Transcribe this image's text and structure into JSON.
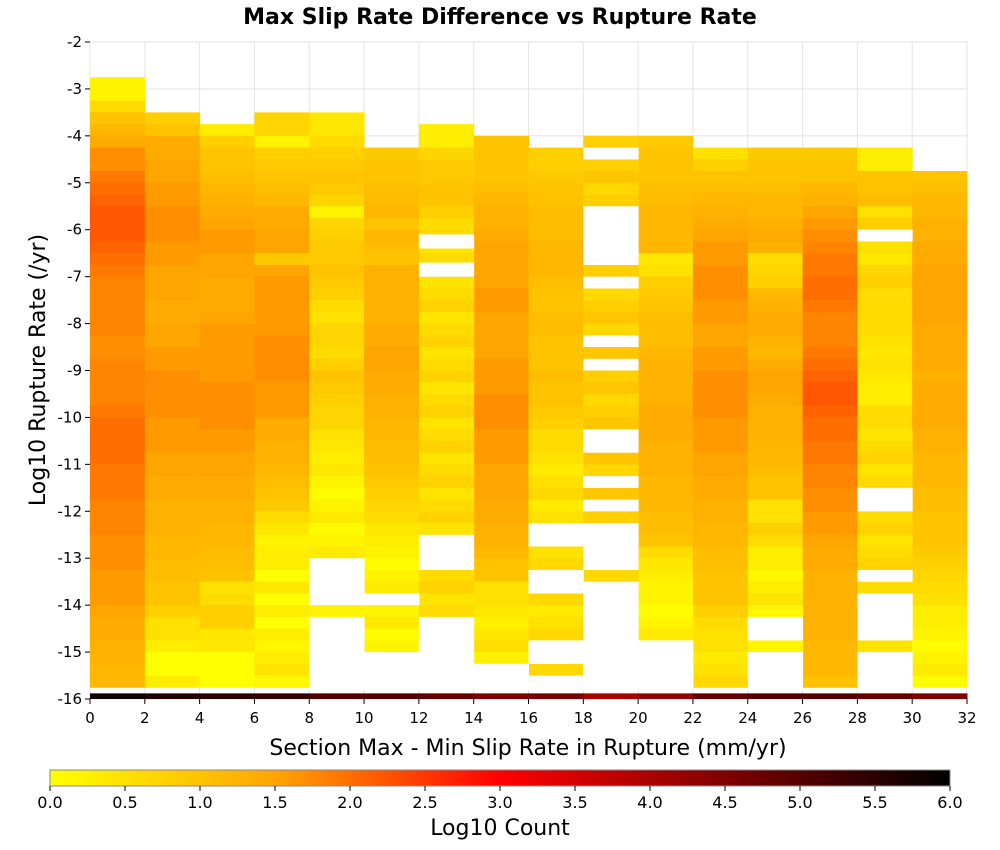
{
  "chart_data": {
    "type": "heatmap",
    "title": "Max Slip Rate Difference vs Rupture Rate",
    "xlabel": "Section Max - Min Slip Rate in Rupture (mm/yr)",
    "ylabel": "Log10 Rupture Rate (/yr)",
    "xlim": [
      0,
      32
    ],
    "ylim": [
      -16,
      -2
    ],
    "x_bin_width": 2,
    "y_bin_width": 0.25,
    "x_ticks": [
      "0",
      "2",
      "4",
      "6",
      "8",
      "10",
      "12",
      "14",
      "16",
      "18",
      "20",
      "22",
      "24",
      "26",
      "28",
      "30",
      "32"
    ],
    "y_ticks": [
      "-2",
      "-3",
      "-4",
      "-5",
      "-6",
      "-7",
      "-8",
      "-9",
      "-10",
      "-11",
      "-12",
      "-13",
      "-14",
      "-15",
      "-16"
    ],
    "grid": true,
    "colorbar": {
      "label": "Log10 Count",
      "range": [
        0,
        6
      ],
      "ticks": [
        "0.0",
        "0.5",
        "1.0",
        "1.5",
        "2.0",
        "2.5",
        "3.0",
        "3.5",
        "4.0",
        "4.5",
        "5.0",
        "5.5",
        "6.0"
      ],
      "colors": [
        "#ffff00",
        "#ffa500",
        "#ff0000",
        "#000000"
      ],
      "placement": "bottom"
    },
    "columns": [
      {
        "x": 1,
        "y_top": -2.75,
        "values": [
          0.2,
          0.2,
          0.6,
          1.0,
          1.2,
          1.4,
          1.7,
          1.7,
          1.9,
          2.0,
          2.1,
          2.2,
          2.2,
          2.2,
          2.1,
          2.0,
          1.9,
          1.8,
          1.8,
          1.8,
          1.8,
          1.8,
          1.7,
          1.7,
          1.8,
          1.8,
          1.8,
          1.8,
          1.9,
          2.0,
          2.0,
          2.0,
          2.0,
          1.9,
          1.9,
          1.9,
          1.8,
          1.8,
          1.8,
          1.7,
          1.7,
          1.7,
          1.6,
          1.6,
          1.6,
          1.5,
          1.4,
          1.4,
          1.3,
          1.3,
          1.2,
          1.2
        ]
      },
      {
        "x": 3,
        "y_top": -3.5,
        "values": [
          0.8,
          1.0,
          1.4,
          1.4,
          1.5,
          1.5,
          1.6,
          1.6,
          1.7,
          1.7,
          1.7,
          1.6,
          1.6,
          1.5,
          1.5,
          1.5,
          1.4,
          1.4,
          1.5,
          1.5,
          1.6,
          1.6,
          1.7,
          1.7,
          1.7,
          1.7,
          1.6,
          1.6,
          1.6,
          1.5,
          1.5,
          1.4,
          1.4,
          1.3,
          1.3,
          1.3,
          1.2,
          1.2,
          1.1,
          1.1,
          1.0,
          1.0,
          0.8,
          0.5,
          0.5,
          0.3,
          0.0,
          0.0,
          0.3
        ]
      },
      {
        "x": 5,
        "y_top": -3.75,
        "values": [
          0.3,
          0.8,
          1.0,
          1.0,
          1.1,
          1.2,
          1.3,
          1.4,
          1.5,
          1.6,
          1.6,
          1.5,
          1.5,
          1.4,
          1.4,
          1.4,
          1.5,
          1.6,
          1.6,
          1.6,
          1.6,
          1.6,
          1.7,
          1.7,
          1.7,
          1.7,
          1.6,
          1.6,
          1.5,
          1.5,
          1.4,
          1.4,
          1.3,
          1.3,
          1.2,
          1.2,
          1.1,
          1.1,
          1.0,
          0.5,
          0.6,
          0.8,
          0.8,
          0.4,
          0.4,
          0.0,
          0.0,
          0.0
        ]
      },
      {
        "x": 7,
        "y_top": -3.5,
        "values": [
          0.7,
          0.7,
          0.2,
          0.8,
          0.9,
          1.0,
          1.1,
          1.2,
          1.4,
          1.4,
          1.5,
          1.5,
          0.9,
          1.5,
          1.6,
          1.6,
          1.6,
          1.6,
          1.6,
          1.7,
          1.7,
          1.7,
          1.7,
          1.6,
          1.6,
          1.6,
          1.4,
          1.4,
          1.3,
          1.3,
          1.2,
          1.1,
          1.0,
          0.9,
          0.6,
          0.4,
          0.2,
          0.3,
          0.3,
          0.0,
          0.4,
          0.0,
          0.3,
          0.0,
          0.3
        ]
      },
      {
        "x": 9,
        "y_top": -3.5,
        "values": [
          0.4,
          0.4,
          0.6,
          0.8,
          0.9,
          1.0,
          0.9,
          0.7,
          0.2,
          0.7,
          0.8,
          0.9,
          0.9,
          1.0,
          0.9,
          0.8,
          0.6,
          0.5,
          0.7,
          0.7,
          0.6,
          0.8,
          1.0,
          0.9,
          0.8,
          0.7,
          0.7,
          0.5,
          0.4,
          0.3,
          0.4,
          0.2
        ]
      },
      {
        "x": 11,
        "y_top": -4.25,
        "values": [
          0.9,
          1.0,
          1.0,
          1.1,
          1.1,
          1.2,
          1.0,
          1.2,
          1.1,
          1.0,
          1.3,
          1.3,
          1.3,
          1.3,
          1.3,
          1.4,
          1.4,
          1.5,
          1.5,
          1.4,
          1.4,
          1.3,
          1.3,
          1.2,
          1.2,
          1.1,
          1.1,
          1.0,
          0.9,
          0.8,
          0.7,
          0.6,
          0.4,
          0.3,
          0.2
        ]
      },
      {
        "x": 13,
        "y_top": -3.75,
        "values": [
          0.3,
          0.3,
          0.7,
          0.9,
          0.9,
          1.0,
          1.0,
          0.8,
          0.6,
          0.6
        ]
      },
      {
        "x": 15,
        "y_top": -4.0,
        "values": [
          1.0,
          1.0,
          1.0,
          1.0,
          1.1,
          1.2,
          1.3,
          1.3,
          1.4,
          1.5,
          1.5,
          1.5,
          1.5,
          1.6,
          1.6,
          1.5,
          1.5,
          1.5,
          1.5,
          1.6,
          1.6,
          1.6,
          1.7,
          1.7,
          1.7,
          1.6,
          1.6,
          1.6,
          1.5,
          1.5,
          1.5,
          1.4,
          1.4,
          1.3,
          1.3,
          1.2,
          1.0,
          1.0,
          0.5,
          0.5,
          0.4
        ]
      },
      {
        "x": 17,
        "y_top": -4.25,
        "values": [
          0.8,
          0.8,
          0.9,
          1.0,
          1.0,
          1.1,
          1.1,
          1.1,
          1.2,
          1.2,
          1.2,
          1.1,
          1.0,
          1.0,
          1.1,
          1.1,
          1.0,
          1.0,
          1.0,
          1.1,
          1.0,
          1.0,
          0.9,
          0.8,
          0.6,
          0.6,
          0.5
        ]
      },
      {
        "x": 19,
        "y_top": -4.0,
        "values": [
          0.8
        ]
      },
      {
        "x": 21,
        "y_top": -4.0,
        "values": [
          0.9,
          1.0,
          1.0,
          1.0,
          1.1,
          1.1,
          1.2,
          1.2,
          1.2,
          1.2,
          0.4,
          0.5,
          0.8,
          0.9,
          1.0,
          1.1,
          1.1,
          1.1,
          1.2,
          1.3,
          1.3,
          1.3,
          1.3,
          1.4,
          1.4,
          1.4,
          1.3,
          1.3,
          1.3,
          1.2,
          1.2,
          1.2,
          1.1,
          1.1,
          1.0,
          0.6,
          0.4,
          0.3,
          0.2,
          0.2
        ]
      },
      {
        "x": 23,
        "y_top": -4.25,
        "values": [
          0.5,
          0.8,
          1.0,
          1.1,
          1.2,
          1.3,
          1.4,
          1.5,
          1.6,
          1.6,
          1.7,
          1.7,
          1.7,
          1.6,
          1.6,
          1.5,
          1.5,
          1.6,
          1.6,
          1.7,
          1.7,
          1.7,
          1.7,
          1.6,
          1.6,
          1.6,
          1.5,
          1.5,
          1.4,
          1.4,
          1.3,
          1.3,
          1.2,
          1.2,
          1.1,
          1.1,
          1.0,
          1.0,
          1.0,
          0.8,
          0.6,
          0.5,
          0.5
        ]
      },
      {
        "x": 25,
        "y_top": -4.25,
        "values": [
          0.9,
          1.0,
          1.0,
          1.1,
          1.2,
          1.2,
          1.3,
          1.4,
          1.3,
          0.6,
          0.7,
          0.8,
          1.2,
          1.3,
          1.4,
          1.4,
          1.3,
          1.2,
          1.4,
          1.5,
          1.5,
          1.4,
          1.3,
          1.3,
          1.3,
          1.2,
          1.2,
          1.1,
          1.0,
          1.0,
          0.5,
          0.5,
          0.8,
          0.6,
          0.3,
          0.3
        ]
      },
      {
        "x": 27,
        "y_top": -4.25,
        "values": [
          0.9,
          1.0,
          1.0,
          1.2,
          1.3,
          1.5,
          1.6,
          1.7,
          1.8,
          1.9,
          1.9,
          2.0,
          2.0,
          1.9,
          1.8,
          1.8,
          1.8,
          1.9,
          2.0,
          2.1,
          2.2,
          2.2,
          2.1,
          2.0,
          2.0,
          1.9,
          1.9,
          1.8,
          1.8,
          1.7,
          1.7,
          1.6,
          1.6,
          1.5,
          1.4,
          1.4,
          1.3,
          1.3,
          1.3,
          1.3,
          1.3,
          1.3,
          1.2,
          1.2,
          1.2
        ]
      },
      {
        "x": 29,
        "y_top": -4.25,
        "values": [
          0.3,
          0.3,
          1.0,
          1.0,
          1.1,
          0.5,
          0.8,
          0.3,
          0.5,
          0.4,
          0.7,
          0.8,
          0.6,
          0.6,
          0.6,
          0.6,
          0.5,
          0.4,
          0.5,
          0.4,
          0.3,
          0.3,
          0.6,
          0.6
        ]
      },
      {
        "x": 31,
        "y_top": -4.75,
        "values": [
          1.0,
          1.1,
          1.2,
          1.2,
          1.3,
          1.3,
          1.4,
          1.4,
          1.5,
          1.5,
          1.5,
          1.5,
          1.5,
          1.4,
          1.4,
          1.4,
          1.4,
          1.3,
          1.4,
          1.4,
          1.4,
          1.4,
          1.3,
          1.3,
          1.2,
          1.2,
          1.2,
          1.1,
          1.1,
          1.0,
          1.0,
          1.0,
          0.9,
          0.8,
          0.7,
          0.6,
          0.5,
          0.3,
          0.3,
          0.2
        ]
      }
    ],
    "gaps": [
      {
        "x": 9,
        "ranges": [
          [
            -13.0,
            -14.0
          ],
          [
            -14.25,
            -16.0
          ]
        ]
      },
      {
        "x": 11,
        "ranges": [
          [
            -13.75,
            -14.0
          ],
          [
            -15.0,
            -16.0
          ]
        ]
      },
      {
        "x": 13,
        "ranges": [
          [
            -6.1,
            -6.4
          ],
          [
            -6.7,
            -7.0
          ],
          [
            -12.5,
            -13.25
          ],
          [
            -14.25,
            -16.0
          ]
        ]
      },
      {
        "x": 15,
        "ranges": [
          [
            -15.25,
            -16.0
          ]
        ]
      },
      {
        "x": 17,
        "ranges": [
          [
            -12.25,
            -12.75
          ],
          [
            -13.25,
            -13.75
          ],
          [
            -14.75,
            -15.25
          ],
          [
            -15.5,
            -16.0
          ]
        ]
      },
      {
        "x": 19,
        "ranges": [
          [
            -4.25,
            -4.5
          ],
          [
            -5.5,
            -6.75
          ],
          [
            -7.0,
            -7.25
          ],
          [
            -8.25,
            -8.5
          ],
          [
            -8.75,
            -9.0
          ],
          [
            -10.25,
            -10.75
          ],
          [
            -11.25,
            -11.5
          ],
          [
            -11.75,
            -12.0
          ],
          [
            -12.25,
            -13.25
          ],
          [
            -13.5,
            -16.0
          ]
        ]
      },
      {
        "x": 21,
        "ranges": [
          [
            -14.75,
            -16.0
          ]
        ]
      },
      {
        "x": 25,
        "ranges": [
          [
            -14.25,
            -14.75
          ],
          [
            -15.0,
            -16.0
          ]
        ]
      },
      {
        "x": 29,
        "ranges": [
          [
            -6.0,
            -6.25
          ],
          [
            -11.5,
            -12.0
          ],
          [
            -13.25,
            -13.5
          ],
          [
            -13.75,
            -14.75
          ],
          [
            -15.0,
            -16.0
          ]
        ]
      }
    ],
    "bottom_row": {
      "y": -15.9,
      "values": [
        5.8,
        5.6,
        5.5,
        5.4,
        5.0,
        5.0,
        4.8,
        4.5,
        4.6,
        4.0,
        4.3,
        4.8,
        5.0,
        5.0,
        4.8,
        4.5
      ]
    }
  }
}
